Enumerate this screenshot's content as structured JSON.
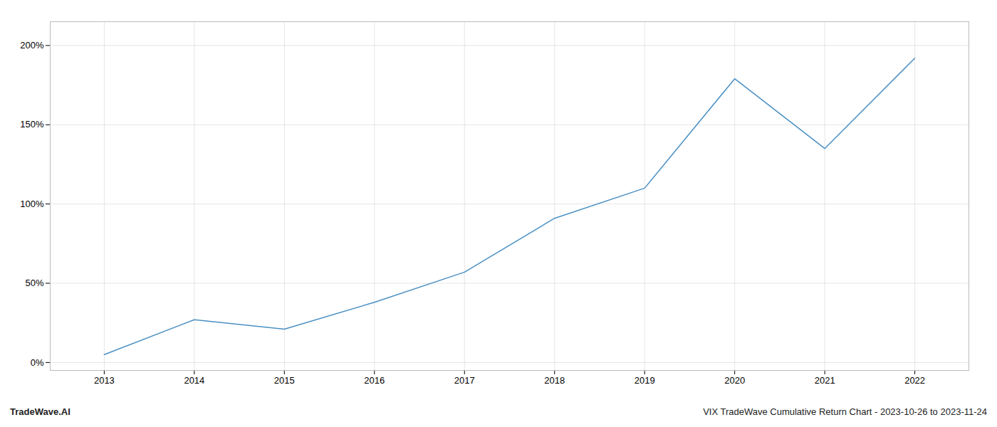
{
  "chart_data": {
    "type": "line",
    "x": [
      2013,
      2014,
      2015,
      2016,
      2017,
      2018,
      2019,
      2020,
      2021,
      2022
    ],
    "values": [
      0.05,
      0.27,
      0.21,
      0.38,
      0.57,
      0.91,
      1.1,
      1.79,
      1.35,
      1.92
    ],
    "color": "#4a90c4",
    "xlim": [
      2012.4,
      2022.6
    ],
    "xticks": [
      2013,
      2014,
      2015,
      2016,
      2017,
      2018,
      2019,
      2020,
      2021,
      2022
    ],
    "ylim": [
      -0.05,
      2.15
    ],
    "yticks": [
      {
        "value": 0.0,
        "label": "0%"
      },
      {
        "value": 0.5,
        "label": "50%"
      },
      {
        "value": 1.0,
        "label": "100%"
      },
      {
        "value": 1.5,
        "label": "150%"
      },
      {
        "value": 2.0,
        "label": "200%"
      }
    ],
    "grid": true,
    "annotations": [
      "TradeWave.AI",
      "VIX TradeWave Cumulative Return Chart - 2023-10-26 to 2023-11-24"
    ]
  }
}
